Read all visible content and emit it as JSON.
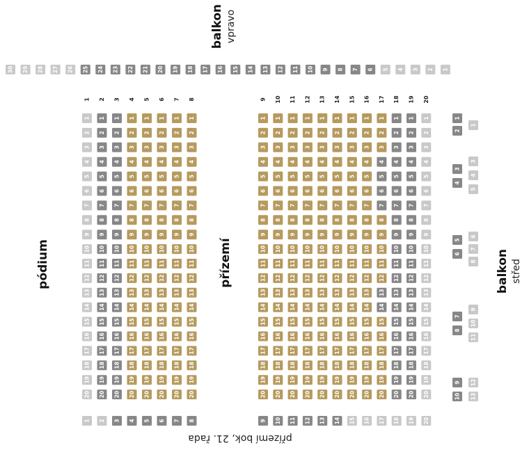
{
  "balcony_right": {
    "title": "balkon",
    "subtitle": "vpravo",
    "seats": [
      "30",
      "29",
      "28",
      "27",
      "26",
      "25",
      "24",
      "23",
      "22",
      "21",
      "20",
      "19",
      "18",
      "17",
      "16",
      "15",
      "14",
      "13",
      "12",
      "11",
      "10",
      "9",
      "8",
      "7",
      "6",
      "5",
      "4",
      "3",
      "2",
      "1"
    ],
    "status": "lllllddddddddddddddddddddlllll"
  },
  "stage": "pódium",
  "ground_floor": {
    "title": "přízemí",
    "columns": [
      {
        "label": "1",
        "seats": [
          "1",
          "2",
          "3",
          "4",
          "5",
          "6",
          "7",
          "8",
          "9",
          "10",
          "11",
          "12",
          "13",
          "14",
          "15",
          "16",
          "17",
          "18",
          "19",
          "20"
        ],
        "status": "llllllllllllllllllll"
      },
      {
        "label": "2",
        "seats": [
          "1",
          "2",
          "3",
          "4",
          "5",
          "6",
          "7",
          "8",
          "9",
          "10",
          "11",
          "12",
          "13",
          "14",
          "15",
          "16",
          "17",
          "18",
          "19",
          "20"
        ],
        "status": "dddddddddddddddddddd"
      },
      {
        "label": "3",
        "seats": [
          "1",
          "2",
          "3",
          "4",
          "5",
          "6",
          "7",
          "8",
          "9",
          "10",
          "11",
          "12",
          "13",
          "14",
          "15",
          "16",
          "17",
          "18",
          "19",
          "20"
        ],
        "status": "dddddddddddddddddddd"
      },
      {
        "label": "4",
        "seats": [
          "1",
          "2",
          "3",
          "4",
          "5",
          "6",
          "7",
          "8",
          "9",
          "10",
          "11",
          "12",
          "13",
          "14",
          "15",
          "16",
          "17",
          "18",
          "19",
          "20"
        ],
        "status": "gggggggggggggggggggg"
      },
      {
        "label": "5",
        "seats": [
          "1",
          "2",
          "3",
          "4",
          "5",
          "6",
          "7",
          "8",
          "9",
          "10",
          "11",
          "12",
          "13",
          "14",
          "15",
          "16",
          "17",
          "18",
          "19",
          "20"
        ],
        "status": "gggggggggggggggggggg"
      },
      {
        "label": "6",
        "seats": [
          "1",
          "2",
          "3",
          "4",
          "5",
          "6",
          "7",
          "8",
          "9",
          "10",
          "11",
          "12",
          "13",
          "14",
          "15",
          "16",
          "17",
          "18",
          "19",
          "20"
        ],
        "status": "gggggggggggggggggggg"
      },
      {
        "label": "7",
        "seats": [
          "1",
          "2",
          "3",
          "4",
          "5",
          "6",
          "7",
          "8",
          "9",
          "10",
          "11",
          "12",
          "13",
          "14",
          "15",
          "16",
          "17",
          "18",
          "19",
          "20"
        ],
        "status": "gggggggggggggggggggg"
      },
      {
        "label": "8",
        "seats": [
          "1",
          "2",
          "3",
          "4",
          "5",
          "6",
          "7",
          "8",
          "9",
          "10",
          "11",
          "12",
          "13",
          "14",
          "15",
          "16",
          "17",
          "18",
          "19",
          "20"
        ],
        "status": "gggggggggggggggggggg"
      },
      {
        "label": "9",
        "seats": [
          "1",
          "2",
          "3",
          "4",
          "5",
          "6",
          "7",
          "8",
          "9",
          "10",
          "11",
          "12",
          "13",
          "14",
          "15",
          "16",
          "17",
          "18",
          "19",
          "20"
        ],
        "status": "gggggggggggggggggggg"
      },
      {
        "label": "10",
        "seats": [
          "1",
          "2",
          "3",
          "4",
          "5",
          "6",
          "7",
          "8",
          "9",
          "10",
          "11",
          "12",
          "13",
          "14",
          "15",
          "16",
          "17",
          "18",
          "19",
          "20"
        ],
        "status": "gggggggggggggggggggg"
      },
      {
        "label": "11",
        "seats": [
          "1",
          "2",
          "3",
          "4",
          "5",
          "6",
          "7",
          "8",
          "9",
          "10",
          "11",
          "12",
          "13",
          "14",
          "15",
          "16",
          "17",
          "18",
          "19",
          "20"
        ],
        "status": "gggggggggggggggggggg"
      },
      {
        "label": "12",
        "seats": [
          "1",
          "2",
          "3",
          "4",
          "5",
          "6",
          "7",
          "8",
          "9",
          "10",
          "11",
          "12",
          "13",
          "14",
          "15",
          "16",
          "17",
          "18",
          "19",
          "20"
        ],
        "status": "gggggggggggggggggggg"
      },
      {
        "label": "13",
        "seats": [
          "1",
          "2",
          "3",
          "4",
          "5",
          "6",
          "7",
          "8",
          "9",
          "10",
          "11",
          "12",
          "13",
          "14",
          "15",
          "16",
          "17",
          "18",
          "19",
          "20"
        ],
        "status": "gggggggggggggggggggg"
      },
      {
        "label": "14",
        "seats": [
          "1",
          "2",
          "3",
          "4",
          "5",
          "6",
          "7",
          "8",
          "9",
          "10",
          "11",
          "12",
          "13",
          "14",
          "15",
          "16",
          "17",
          "18",
          "19",
          "20"
        ],
        "status": "gggggggggggggggggggg"
      },
      {
        "label": "15",
        "seats": [
          "1",
          "2",
          "3",
          "4",
          "5",
          "6",
          "7",
          "8",
          "9",
          "10",
          "11",
          "12",
          "13",
          "14",
          "15",
          "16",
          "17",
          "18",
          "19",
          "20"
        ],
        "status": "gggggggggggggggggggg"
      },
      {
        "label": "16",
        "seats": [
          "1",
          "2",
          "3",
          "4",
          "5",
          "6",
          "7",
          "8",
          "9",
          "10",
          "11",
          "12",
          "13",
          "14",
          "15",
          "16",
          "17",
          "18",
          "19",
          "20"
        ],
        "status": "gggggggggggggggggggg"
      },
      {
        "label": "17",
        "seats": [
          "1",
          "2",
          "3",
          "4",
          "5",
          "6",
          "7",
          "8",
          "9",
          "10",
          "11",
          "12",
          "13",
          "14",
          "15",
          "16",
          "17",
          "18",
          "19",
          "20"
        ],
        "status": "gggddddgggggddgggggg"
      },
      {
        "label": "18",
        "seats": [
          "1",
          "2",
          "3",
          "4",
          "5",
          "6",
          "7",
          "8",
          "9",
          "10",
          "11",
          "12",
          "13",
          "14",
          "15",
          "16",
          "17",
          "18",
          "19",
          "20"
        ],
        "status": "dddddddddddddddddddd"
      },
      {
        "label": "19",
        "seats": [
          "1",
          "2",
          "3",
          "4",
          "5",
          "6",
          "7",
          "8",
          "9",
          "10",
          "11",
          "12",
          "13",
          "14",
          "15",
          "16",
          "17",
          "18",
          "19",
          "20"
        ],
        "status": "dddddddddddddddddddd"
      },
      {
        "label": "20",
        "seats": [
          "1",
          "2",
          "3",
          "4",
          "5",
          "6",
          "7",
          "8",
          "9",
          "10",
          "11",
          "12",
          "13",
          "14",
          "15",
          "16",
          "17",
          "18",
          "19",
          "20"
        ],
        "status": "llllllllllllllllllll"
      }
    ]
  },
  "side_row": {
    "title": "přízemí bok, 21. řada",
    "seats": [
      "1",
      "2",
      "3",
      "4",
      "5",
      "6",
      "7",
      "8",
      "9",
      "10",
      "11",
      "12",
      "13",
      "14",
      "15",
      "16",
      "17",
      "18",
      "19",
      "20"
    ],
    "status": "llddddddddddddllllll"
  },
  "balcony_center": {
    "title": "balkon",
    "subtitle": "střed",
    "seats_a": [
      "1",
      "2",
      "3",
      "4",
      "5",
      "6",
      "7",
      "8",
      "9",
      "10"
    ],
    "status_a": "dddddddddd",
    "seats_b": [
      "1",
      "3",
      "4",
      "5",
      "6",
      "7",
      "8",
      "9",
      "10",
      "11",
      "12",
      "13"
    ],
    "status_b": "llllllllllll"
  }
}
